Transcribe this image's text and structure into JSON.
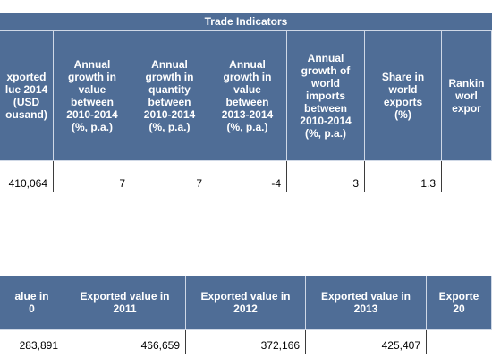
{
  "table1": {
    "title": "Trade Indicators",
    "headers": [
      "xported\nlue 2014\n(USD\nousand)",
      "Annual\ngrowth in\nvalue\nbetween\n2010-2014\n(%, p.a.)",
      "Annual\ngrowth in\nquantity\nbetween\n2010-2014\n(%, p.a.)",
      "Annual\ngrowth in\nvalue\nbetween\n2013-2014\n(%, p.a.)",
      "Annual\ngrowth of\nworld\nimports\nbetween\n2010-2014\n(%, p.a.)",
      "Share in\nworld\nexports\n(%)",
      "Rankin\nworl\nexpor"
    ],
    "values": [
      "410,064",
      "7",
      "7",
      "-4",
      "3",
      "1.3",
      ""
    ]
  },
  "table2": {
    "headers": [
      "alue in\n0",
      "Exported value in\n2011",
      "Exported value in\n2012",
      "Exported value in\n2013",
      "Exporte\n20"
    ],
    "values": [
      "283,891",
      "466,659",
      "372,166",
      "425,407",
      ""
    ]
  },
  "colors": {
    "header_bg": "#4f6d96",
    "header_text": "#ffffff",
    "grid": "#3d3d3d"
  }
}
